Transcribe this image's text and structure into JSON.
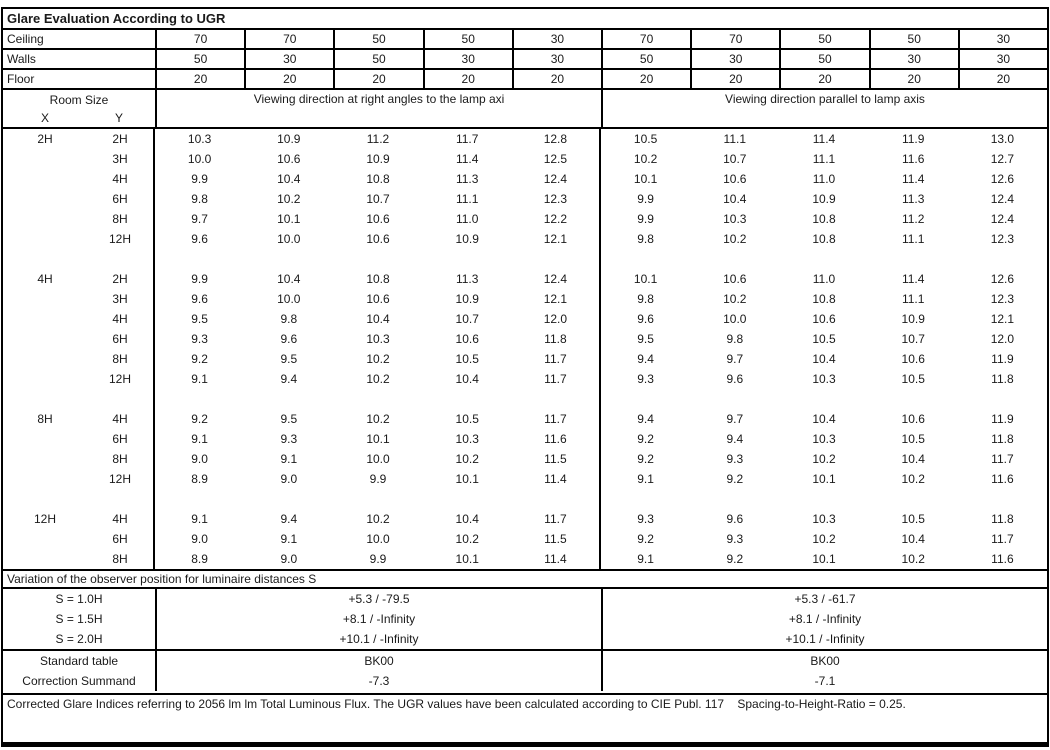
{
  "title": "Glare Evaluation According to UGR",
  "reflectance_rows": [
    {
      "label": "Ceiling",
      "values": [
        "70",
        "70",
        "50",
        "50",
        "30",
        "70",
        "70",
        "50",
        "50",
        "30"
      ]
    },
    {
      "label": "Walls",
      "values": [
        "50",
        "30",
        "50",
        "30",
        "30",
        "50",
        "30",
        "50",
        "30",
        "30"
      ]
    },
    {
      "label": "Floor",
      "values": [
        "20",
        "20",
        "20",
        "20",
        "20",
        "20",
        "20",
        "20",
        "20",
        "20"
      ]
    }
  ],
  "header": {
    "room_size_label": "Room Size",
    "x_label": "X",
    "y_label": "Y",
    "left_group": "Viewing direction at right angles to the lamp axi",
    "right_group": "Viewing direction parallel to lamp axis"
  },
  "ugr_sections": [
    {
      "x": "2H",
      "rows": [
        {
          "y": "2H",
          "left": [
            "10.3",
            "10.9",
            "11.2",
            "11.7",
            "12.8"
          ],
          "right": [
            "10.5",
            "11.1",
            "11.4",
            "11.9",
            "13.0"
          ]
        },
        {
          "y": "3H",
          "left": [
            "10.0",
            "10.6",
            "10.9",
            "11.4",
            "12.5"
          ],
          "right": [
            "10.2",
            "10.7",
            "11.1",
            "11.6",
            "12.7"
          ]
        },
        {
          "y": "4H",
          "left": [
            "9.9",
            "10.4",
            "10.8",
            "11.3",
            "12.4"
          ],
          "right": [
            "10.1",
            "10.6",
            "11.0",
            "11.4",
            "12.6"
          ]
        },
        {
          "y": "6H",
          "left": [
            "9.8",
            "10.2",
            "10.7",
            "11.1",
            "12.3"
          ],
          "right": [
            "9.9",
            "10.4",
            "10.9",
            "11.3",
            "12.4"
          ]
        },
        {
          "y": "8H",
          "left": [
            "9.7",
            "10.1",
            "10.6",
            "11.0",
            "12.2"
          ],
          "right": [
            "9.9",
            "10.3",
            "10.8",
            "11.2",
            "12.4"
          ]
        },
        {
          "y": "12H",
          "left": [
            "9.6",
            "10.0",
            "10.6",
            "10.9",
            "12.1"
          ],
          "right": [
            "9.8",
            "10.2",
            "10.8",
            "11.1",
            "12.3"
          ]
        }
      ]
    },
    {
      "x": "4H",
      "rows": [
        {
          "y": "2H",
          "left": [
            "9.9",
            "10.4",
            "10.8",
            "11.3",
            "12.4"
          ],
          "right": [
            "10.1",
            "10.6",
            "11.0",
            "11.4",
            "12.6"
          ]
        },
        {
          "y": "3H",
          "left": [
            "9.6",
            "10.0",
            "10.6",
            "10.9",
            "12.1"
          ],
          "right": [
            "9.8",
            "10.2",
            "10.8",
            "11.1",
            "12.3"
          ]
        },
        {
          "y": "4H",
          "left": [
            "9.5",
            "9.8",
            "10.4",
            "10.7",
            "12.0"
          ],
          "right": [
            "9.6",
            "10.0",
            "10.6",
            "10.9",
            "12.1"
          ]
        },
        {
          "y": "6H",
          "left": [
            "9.3",
            "9.6",
            "10.3",
            "10.6",
            "11.8"
          ],
          "right": [
            "9.5",
            "9.8",
            "10.5",
            "10.7",
            "12.0"
          ]
        },
        {
          "y": "8H",
          "left": [
            "9.2",
            "9.5",
            "10.2",
            "10.5",
            "11.7"
          ],
          "right": [
            "9.4",
            "9.7",
            "10.4",
            "10.6",
            "11.9"
          ]
        },
        {
          "y": "12H",
          "left": [
            "9.1",
            "9.4",
            "10.2",
            "10.4",
            "11.7"
          ],
          "right": [
            "9.3",
            "9.6",
            "10.3",
            "10.5",
            "11.8"
          ]
        }
      ]
    },
    {
      "x": "8H",
      "rows": [
        {
          "y": "4H",
          "left": [
            "9.2",
            "9.5",
            "10.2",
            "10.5",
            "11.7"
          ],
          "right": [
            "9.4",
            "9.7",
            "10.4",
            "10.6",
            "11.9"
          ]
        },
        {
          "y": "6H",
          "left": [
            "9.1",
            "9.3",
            "10.1",
            "10.3",
            "11.6"
          ],
          "right": [
            "9.2",
            "9.4",
            "10.3",
            "10.5",
            "11.8"
          ]
        },
        {
          "y": "8H",
          "left": [
            "9.0",
            "9.1",
            "10.0",
            "10.2",
            "11.5"
          ],
          "right": [
            "9.2",
            "9.3",
            "10.2",
            "10.4",
            "11.7"
          ]
        },
        {
          "y": "12H",
          "left": [
            "8.9",
            "9.0",
            "9.9",
            "10.1",
            "11.4"
          ],
          "right": [
            "9.1",
            "9.2",
            "10.1",
            "10.2",
            "11.6"
          ]
        }
      ]
    },
    {
      "x": "12H",
      "rows": [
        {
          "y": "4H",
          "left": [
            "9.1",
            "9.4",
            "10.2",
            "10.4",
            "11.7"
          ],
          "right": [
            "9.3",
            "9.6",
            "10.3",
            "10.5",
            "11.8"
          ]
        },
        {
          "y": "6H",
          "left": [
            "9.0",
            "9.1",
            "10.0",
            "10.2",
            "11.5"
          ],
          "right": [
            "9.2",
            "9.3",
            "10.2",
            "10.4",
            "11.7"
          ]
        },
        {
          "y": "8H",
          "left": [
            "8.9",
            "9.0",
            "9.9",
            "10.1",
            "11.4"
          ],
          "right": [
            "9.1",
            "9.2",
            "10.1",
            "10.2",
            "11.6"
          ]
        }
      ]
    }
  ],
  "variation_label": "Variation of the observer position for luminaire distances S",
  "variation_rows": [
    {
      "label": "S = 1.0H",
      "left": "+5.3 / -79.5",
      "right": "+5.3 / -61.7"
    },
    {
      "label": "S = 1.5H",
      "left": "+8.1 / -Infinity",
      "right": "+8.1 / -Infinity"
    },
    {
      "label": "S = 2.0H",
      "left": "+10.1 / -Infinity",
      "right": "+10.1 / -Infinity"
    }
  ],
  "summary_rows": [
    {
      "label": "Standard table",
      "left": "BK00",
      "right": "BK00"
    },
    {
      "label": "Correction Summand",
      "left": "-7.3",
      "right": "-7.1"
    }
  ],
  "footer": "Corrected Glare Indices referring to 2056 lm lm Total Luminous Flux. The UGR values have been calculated according to CIE Publ. 117    Spacing-to-Height-Ratio = 0.25."
}
